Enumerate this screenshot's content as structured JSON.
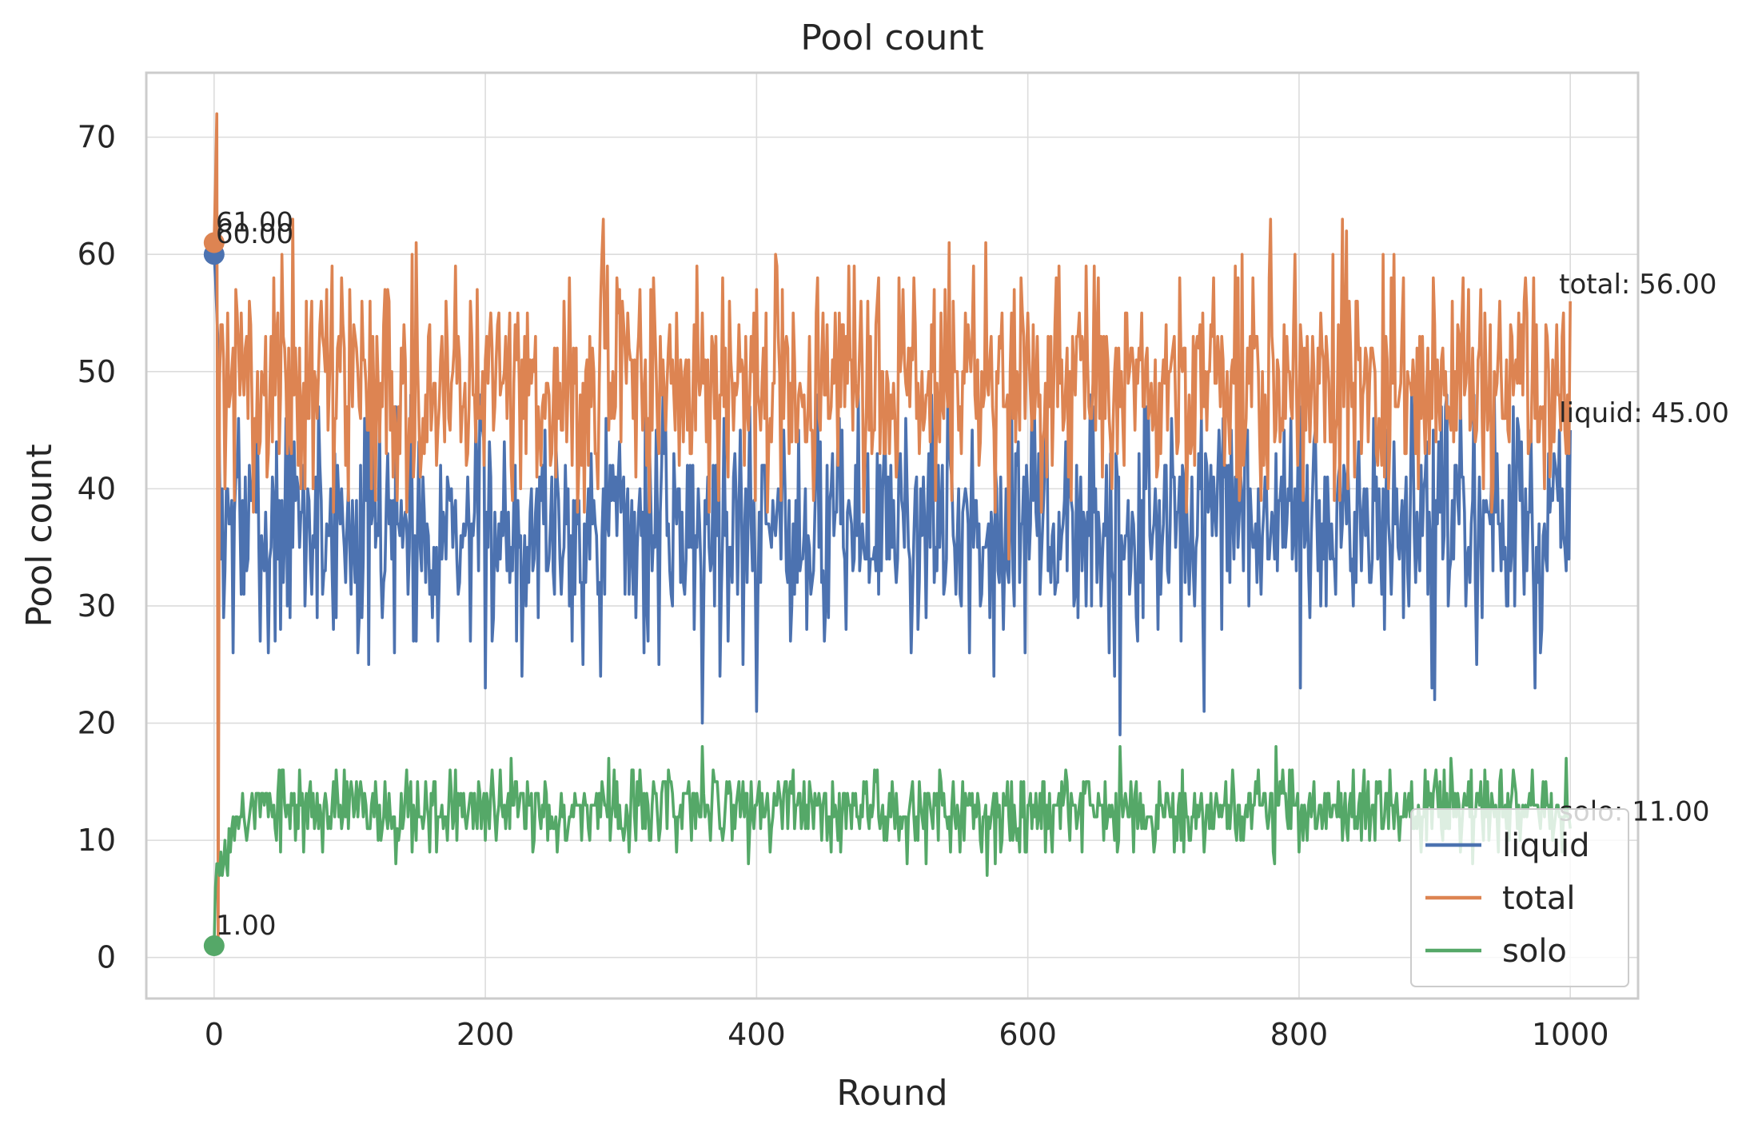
{
  "chart_data": {
    "type": "line",
    "title": "Pool count",
    "xlabel": "Round",
    "ylabel": "Pool count",
    "xlim": [
      -50,
      1050
    ],
    "ylim": [
      -3.5,
      75.5
    ],
    "xticks": [
      0,
      200,
      400,
      600,
      800,
      1000
    ],
    "yticks": [
      0,
      10,
      20,
      30,
      40,
      50,
      60,
      70
    ],
    "grid": true,
    "legend_position": "lower right",
    "rounds": 1000,
    "series": [
      {
        "name": "liquid",
        "color": "#4c72b0",
        "start": 60,
        "end": 45,
        "typical_range": [
          23,
          48
        ],
        "sample_points": [
          [
            0,
            60
          ],
          [
            3,
            52
          ],
          [
            10,
            40
          ],
          [
            40,
            26
          ],
          [
            200,
            23
          ],
          [
            360,
            20
          ],
          [
            400,
            21
          ],
          [
            668,
            19
          ],
          [
            730,
            21
          ],
          [
            900,
            22
          ],
          [
            1000,
            45
          ]
        ]
      },
      {
        "name": "total",
        "color": "#dd8452",
        "start": 61,
        "end": 56,
        "typical_range": [
          38,
          63
        ],
        "sample_points": [
          [
            0,
            61
          ],
          [
            2,
            72
          ],
          [
            3,
            1
          ],
          [
            10,
            55
          ],
          [
            58,
            63
          ],
          [
            287,
            63
          ],
          [
            586,
            34
          ],
          [
            832,
            63
          ],
          [
            1000,
            56
          ]
        ]
      },
      {
        "name": "solo",
        "color": "#55a868",
        "start": 1,
        "end": 11,
        "typical_range": [
          8,
          18
        ],
        "sample_points": [
          [
            0,
            1
          ],
          [
            3,
            8
          ],
          [
            10,
            7
          ],
          [
            20,
            12
          ],
          [
            360,
            18
          ],
          [
            570,
            7
          ],
          [
            668,
            18
          ],
          [
            783,
            18
          ],
          [
            1000,
            11
          ]
        ]
      }
    ],
    "annotations": [
      {
        "text": "61.00",
        "x": 0,
        "y": 61,
        "series": "total"
      },
      {
        "text": "60.00",
        "x": 0,
        "y": 60,
        "series": "liquid"
      },
      {
        "text": "1.00",
        "x": 0,
        "y": 1,
        "series": "solo"
      },
      {
        "text": "total: 56.00",
        "x": 1000,
        "y": 56,
        "series": "total"
      },
      {
        "text": "liquid: 45.00",
        "x": 1000,
        "y": 45,
        "series": "liquid"
      },
      {
        "text": "solo: 11.00",
        "x": 1000,
        "y": 11,
        "series": "solo"
      }
    ]
  }
}
